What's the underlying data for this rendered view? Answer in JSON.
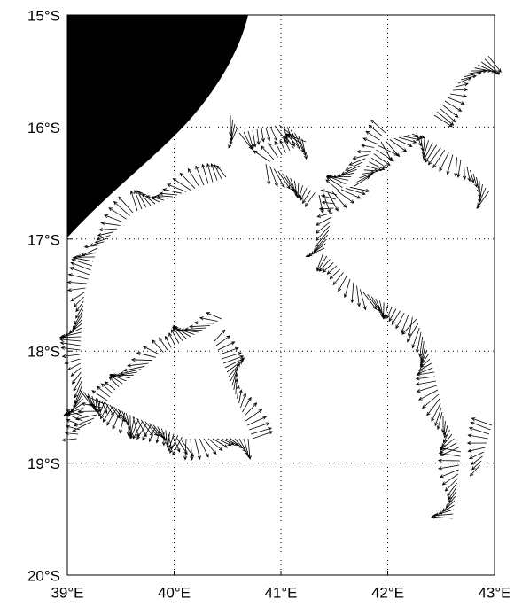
{
  "chart_data": {
    "type": "quiver",
    "xlim": [
      39,
      43
    ],
    "ylim": [
      -20,
      -15
    ],
    "xticks": [
      {
        "value": 39,
        "label": "39°E"
      },
      {
        "value": 40,
        "label": "40°E"
      },
      {
        "value": 41,
        "label": "41°E"
      },
      {
        "value": 42,
        "label": "42°E"
      },
      {
        "value": 43,
        "label": "43°E"
      }
    ],
    "yticks": [
      {
        "value": -20,
        "label": "20°S"
      },
      {
        "value": -19,
        "label": "19°S"
      },
      {
        "value": -18,
        "label": "18°S"
      },
      {
        "value": -17,
        "label": "17°S"
      },
      {
        "value": -16,
        "label": "16°S"
      },
      {
        "value": -15,
        "label": "15°S"
      }
    ],
    "grid": true
  }
}
